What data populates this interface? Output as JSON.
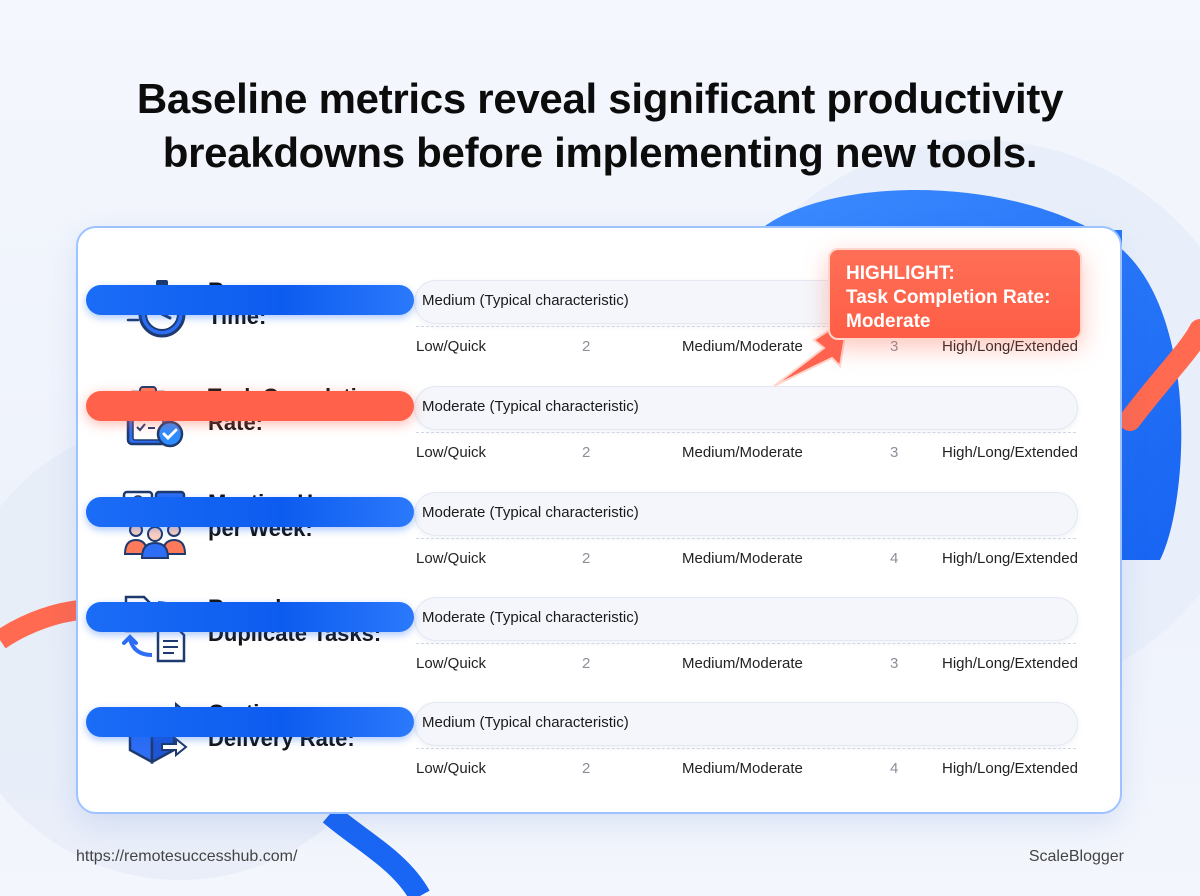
{
  "title": {
    "line1": "Baseline metrics reveal significant productivity",
    "line2": "breakdowns before implementing new tools."
  },
  "chart_data": {
    "type": "bar",
    "orientation": "horizontal",
    "scale_labels": [
      "Low/Quick",
      "Medium/Moderate",
      "High/Long/Extended"
    ],
    "rows": [
      {
        "label_lines": [
          "Response",
          "Time:"
        ],
        "icon": "stopwatch-icon",
        "value_text": "Medium (Typical characteristic)",
        "fill_fraction": 0.5,
        "highlight": false,
        "ticks": [
          "Low/Quick",
          "2",
          "Medium/Moderate",
          "3",
          "High/Long/Extended"
        ]
      },
      {
        "label_lines": [
          "Task Completion",
          "Rate:"
        ],
        "icon": "clipboard-check-icon",
        "value_text": "Moderate (Typical characteristic)",
        "fill_fraction": 0.5,
        "highlight": true,
        "ticks": [
          "Low/Quick",
          "2",
          "Medium/Moderate",
          "3",
          "High/Long/Extended"
        ]
      },
      {
        "label_lines": [
          "Meeting Hours",
          "per Week:"
        ],
        "icon": "video-meeting-icon",
        "value_text": "Moderate (Typical characteristic)",
        "fill_fraction": 0.5,
        "highlight": false,
        "ticks": [
          "Low/Quick",
          "2",
          "Medium/Moderate",
          "4",
          "High/Long/Extended"
        ]
      },
      {
        "label_lines": [
          "Rework or",
          "Duplicate Tasks:"
        ],
        "icon": "documents-cycle-icon",
        "value_text": "Moderate (Typical characteristic)",
        "fill_fraction": 0.5,
        "highlight": false,
        "ticks": [
          "Low/Quick",
          "2",
          "Medium/Moderate",
          "3",
          "High/Long/Extended"
        ]
      },
      {
        "label_lines": [
          "On-time",
          "Delivery Rate:"
        ],
        "icon": "delivery-box-icon",
        "value_text": "Medium (Typical characteristic)",
        "fill_fraction": 0.5,
        "highlight": false,
        "ticks": [
          "Low/Quick",
          "2",
          "Medium/Moderate",
          "4",
          "High/Long/Extended"
        ]
      }
    ],
    "colors": {
      "bar": "#1565f5",
      "highlight": "#ff614a"
    }
  },
  "callout": {
    "line1": "HIGHLIGHT:",
    "line2": "Task Completion Rate:",
    "line3": "Moderate"
  },
  "footer": {
    "url": "https://remotesuccesshub.com/",
    "brand": "ScaleBlogger"
  }
}
